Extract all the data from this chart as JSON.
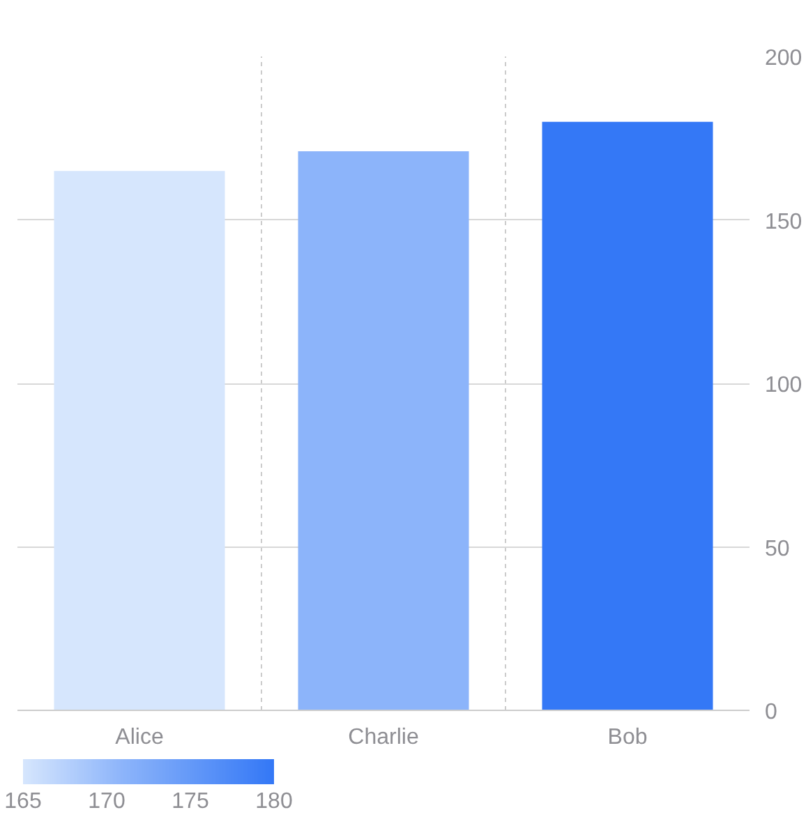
{
  "chart_data": {
    "type": "bar",
    "categories": [
      "Alice",
      "Charlie",
      "Bob"
    ],
    "values": [
      165,
      171,
      180
    ],
    "colors": [
      "#d6e6fd",
      "#8cb4fa",
      "#3478f6"
    ],
    "ylim": [
      0,
      200
    ],
    "yticks": [
      0,
      50,
      100,
      150,
      200
    ],
    "grid": true,
    "clim": [
      165,
      180
    ],
    "cticks": [
      165,
      170,
      175,
      180
    ]
  }
}
